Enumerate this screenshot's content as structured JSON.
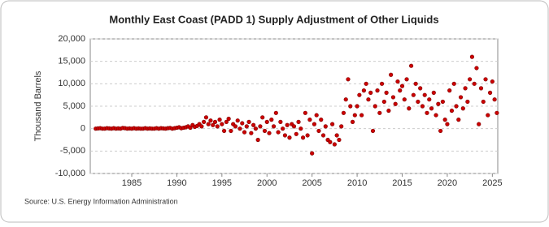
{
  "chart_data": {
    "type": "scatter",
    "title": "Monthly East Coast (PADD 1) Supply Adjustment of Other Liquids",
    "y_label": "Thousand Barrels",
    "source": "Source: U.S. Energy Information Administration",
    "xlim": [
      1980.4,
      2025.6
    ],
    "ylim": [
      -10000,
      20000
    ],
    "xticks": [
      1985,
      1990,
      1995,
      2000,
      2005,
      2010,
      2015,
      2020,
      2025
    ],
    "yticks": [
      {
        "value": -10000,
        "label": "-10,000"
      },
      {
        "value": -5000,
        "label": "-5,000"
      },
      0,
      {
        "value": 5000,
        "label": "5,000"
      },
      {
        "value": 10000,
        "label": "10,000"
      },
      {
        "value": 15000,
        "label": "15,000"
      },
      {
        "value": 20000,
        "label": "20,000"
      }
    ],
    "grid": true,
    "series": [
      {
        "name": "East Coast",
        "color": "#cc0000",
        "x": [
          1981,
          1981.25,
          1981.5,
          1981.75,
          1982,
          1982.25,
          1982.5,
          1982.75,
          1983,
          1983.25,
          1983.5,
          1983.75,
          1984,
          1984.25,
          1984.5,
          1984.75,
          1985,
          1985.25,
          1985.5,
          1985.75,
          1986,
          1986.25,
          1986.5,
          1986.75,
          1987,
          1987.25,
          1987.5,
          1987.75,
          1988,
          1988.25,
          1988.5,
          1988.75,
          1989,
          1989.25,
          1989.5,
          1989.75,
          1990,
          1990.25,
          1990.5,
          1990.75,
          1991,
          1991.25,
          1991.5,
          1991.75,
          1992,
          1992.25,
          1992.5,
          1992.75,
          1993,
          1993.25,
          1993.5,
          1993.75,
          1994,
          1994.25,
          1994.5,
          1994.75,
          1995,
          1995.25,
          1995.5,
          1995.75,
          1996,
          1996.25,
          1996.5,
          1996.75,
          1997,
          1997.25,
          1997.5,
          1997.75,
          1998,
          1998.25,
          1998.5,
          1998.75,
          1999,
          1999.25,
          1999.5,
          1999.75,
          2000,
          2000.25,
          2000.5,
          2000.75,
          2001,
          2001.25,
          2001.5,
          2001.75,
          2002,
          2002.25,
          2002.5,
          2002.75,
          2003,
          2003.25,
          2003.5,
          2003.75,
          2004,
          2004.25,
          2004.5,
          2004.75,
          2005,
          2005.25,
          2005.5,
          2005.75,
          2006,
          2006.25,
          2006.5,
          2006.75,
          2007,
          2007.25,
          2007.5,
          2007.75,
          2008,
          2008.25,
          2008.5,
          2008.75,
          2009,
          2009.25,
          2009.5,
          2009.75,
          2010,
          2010.25,
          2010.5,
          2010.75,
          2011,
          2011.25,
          2011.5,
          2011.75,
          2012,
          2012.25,
          2012.5,
          2012.75,
          2013,
          2013.25,
          2013.5,
          2013.75,
          2014,
          2014.25,
          2014.5,
          2014.75,
          2015,
          2015.25,
          2015.5,
          2015.75,
          2016,
          2016.25,
          2016.5,
          2016.75,
          2017,
          2017.25,
          2017.5,
          2017.75,
          2018,
          2018.25,
          2018.5,
          2018.75,
          2019,
          2019.25,
          2019.5,
          2019.75,
          2020,
          2020.25,
          2020.5,
          2020.75,
          2021,
          2021.25,
          2021.5,
          2021.75,
          2022,
          2022.25,
          2022.5,
          2022.75,
          2023,
          2023.25,
          2023.5,
          2023.75,
          2024,
          2024.25,
          2024.5,
          2024.75,
          2025,
          2025.25,
          2025.5
        ],
        "values": [
          0,
          50,
          100,
          0,
          0,
          100,
          50,
          0,
          100,
          0,
          50,
          0,
          150,
          100,
          0,
          50,
          0,
          100,
          0,
          50,
          0,
          0,
          100,
          0,
          50,
          0,
          0,
          100,
          0,
          100,
          50,
          0,
          100,
          150,
          0,
          100,
          200,
          300,
          100,
          200,
          300,
          500,
          200,
          800,
          400,
          600,
          1000,
          500,
          1500,
          2500,
          1000,
          1800,
          800,
          1500,
          500,
          2000,
          1000,
          -500,
          1500,
          2200,
          -500,
          1000,
          500,
          1800,
          0,
          1200,
          -800,
          500,
          1500,
          -1000,
          800,
          0,
          -2500,
          500,
          2500,
          -500,
          1500,
          -1000,
          2000,
          500,
          3500,
          -800,
          1500,
          0,
          -1500,
          800,
          -2000,
          1000,
          500,
          -1200,
          1500,
          0,
          -2000,
          3500,
          -1500,
          2000,
          -5500,
          1000,
          3000,
          -500,
          2000,
          -1500,
          500,
          -2500,
          -3000,
          1000,
          -3500,
          -1500,
          -2500,
          500,
          3500,
          6500,
          11000,
          5000,
          1500,
          3000,
          5000,
          7500,
          3000,
          8500,
          10000,
          6500,
          8000,
          -500,
          5000,
          8500,
          3500,
          10000,
          6000,
          8000,
          4000,
          12000,
          7000,
          5500,
          10500,
          8500,
          9500,
          6500,
          11000,
          4500,
          14000,
          7500,
          10000,
          6000,
          9000,
          5000,
          7500,
          3500,
          6500,
          4500,
          8000,
          3000,
          5500,
          -500,
          6000,
          2000,
          1000,
          8500,
          4000,
          10000,
          5000,
          2000,
          7000,
          4500,
          9000,
          6000,
          11000,
          16000,
          10000,
          13500,
          1000,
          9000,
          6000,
          11000,
          3000,
          8000,
          10500,
          6500,
          3500
        ]
      }
    ]
  }
}
